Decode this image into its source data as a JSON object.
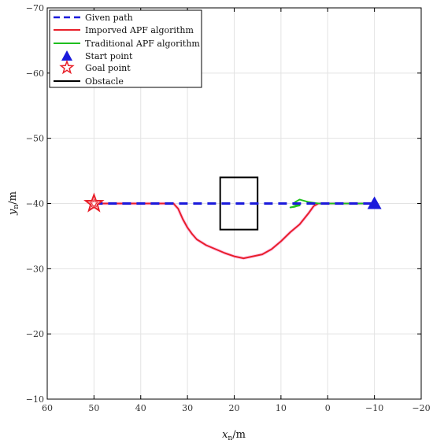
{
  "chart_data": {
    "type": "line",
    "xlabel": {
      "main": "x",
      "sub": "n",
      "unit": "/m"
    },
    "ylabel": {
      "main": "y",
      "sub": "n",
      "unit": "/m"
    },
    "xlim": [
      60,
      -20
    ],
    "ylim": [
      -10,
      -70
    ],
    "xticks": [
      60,
      50,
      40,
      30,
      20,
      10,
      0,
      -10,
      -20
    ],
    "yticks": [
      -10,
      -20,
      -30,
      -40,
      -50,
      -60,
      -70
    ],
    "xtick_labels": [
      "60",
      "50",
      "40",
      "30",
      "20",
      "10",
      "0",
      "−10",
      "−20"
    ],
    "ytick_labels": [
      "−10",
      "−20",
      "−30",
      "−40",
      "−50",
      "−60",
      "−70"
    ],
    "grid": true,
    "legend_position": "top-left",
    "series": [
      {
        "name": "Given path",
        "color": "#1a1adb",
        "style": "dashed",
        "x": [
          50,
          -10
        ],
        "y": [
          -40,
          -40
        ]
      },
      {
        "name": "Imporved APF algorithm",
        "color": "#e8202a",
        "style": "solid",
        "x": [
          -10,
          -5,
          0,
          2,
          3,
          4,
          6,
          8,
          10,
          12,
          14,
          16,
          18,
          20,
          22,
          24,
          26,
          28,
          29,
          30,
          31,
          32,
          33,
          35,
          40,
          45,
          50
        ],
        "y": [
          -40,
          -40,
          -40,
          -40,
          -39.6,
          -38.6,
          -36.8,
          -35.6,
          -34.2,
          -33.0,
          -32.2,
          -31.9,
          -31.6,
          -31.9,
          -32.4,
          -33.0,
          -33.6,
          -34.5,
          -35.3,
          -36.3,
          -37.6,
          -39.2,
          -40,
          -40,
          -40,
          -40,
          -40
        ]
      },
      {
        "name": "Traditional APF algorithm",
        "color": "#1fbf1f",
        "style": "solid",
        "x": [
          -10,
          -5,
          -2,
          0,
          2,
          4,
          5,
          6,
          7,
          6,
          7,
          8,
          6,
          7.5
        ],
        "y": [
          -40,
          -40,
          -40,
          -40,
          -40,
          -40.2,
          -40.4,
          -40.6,
          -40.2,
          -39.8,
          -39.5,
          -39.4,
          -39.7,
          -39.9
        ]
      }
    ],
    "markers": [
      {
        "name": "Start point",
        "shape": "triangle",
        "color": "#1a1adb",
        "x": -10,
        "y": -40
      },
      {
        "name": "Goal point",
        "shape": "star",
        "color": "#e8202a",
        "x": 50,
        "y": -40
      }
    ],
    "obstacle": {
      "name": "Obstacle",
      "color": "#000000",
      "x_range": [
        15,
        23
      ],
      "y_range": [
        -36,
        -44
      ]
    }
  }
}
